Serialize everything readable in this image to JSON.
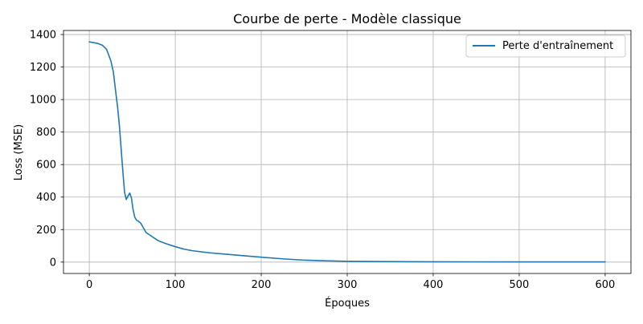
{
  "chart_data": {
    "type": "line",
    "title": "Courbe de perte - Modèle classique",
    "xlabel": "Époques",
    "ylabel": "Loss (MSE)",
    "xlim": [
      -30,
      630
    ],
    "ylim": [
      -70,
      1425
    ],
    "xticks": [
      0,
      100,
      200,
      300,
      400,
      500,
      600
    ],
    "yticks": [
      0,
      200,
      400,
      600,
      800,
      1000,
      1200,
      1400
    ],
    "grid": true,
    "legend_position": "top-right",
    "series_color": "#1f77b4",
    "series": [
      {
        "name": "Perte d'entraînement",
        "x": [
          0,
          5,
          10,
          15,
          20,
          25,
          28,
          30,
          33,
          35,
          37,
          39,
          41,
          43,
          45,
          47,
          49,
          51,
          53,
          55,
          57,
          60,
          63,
          66,
          70,
          75,
          80,
          85,
          90,
          100,
          110,
          120,
          140,
          160,
          180,
          200,
          225,
          250,
          275,
          300,
          350,
          400,
          450,
          500,
          550,
          600
        ],
        "y": [
          1355,
          1350,
          1345,
          1335,
          1310,
          1240,
          1170,
          1080,
          950,
          840,
          700,
          560,
          430,
          385,
          405,
          425,
          395,
          320,
          275,
          258,
          252,
          238,
          210,
          182,
          168,
          150,
          132,
          122,
          112,
          95,
          80,
          70,
          57,
          48,
          39,
          30,
          20,
          12,
          8,
          5,
          3,
          2,
          1.5,
          1,
          1,
          1
        ]
      }
    ]
  }
}
